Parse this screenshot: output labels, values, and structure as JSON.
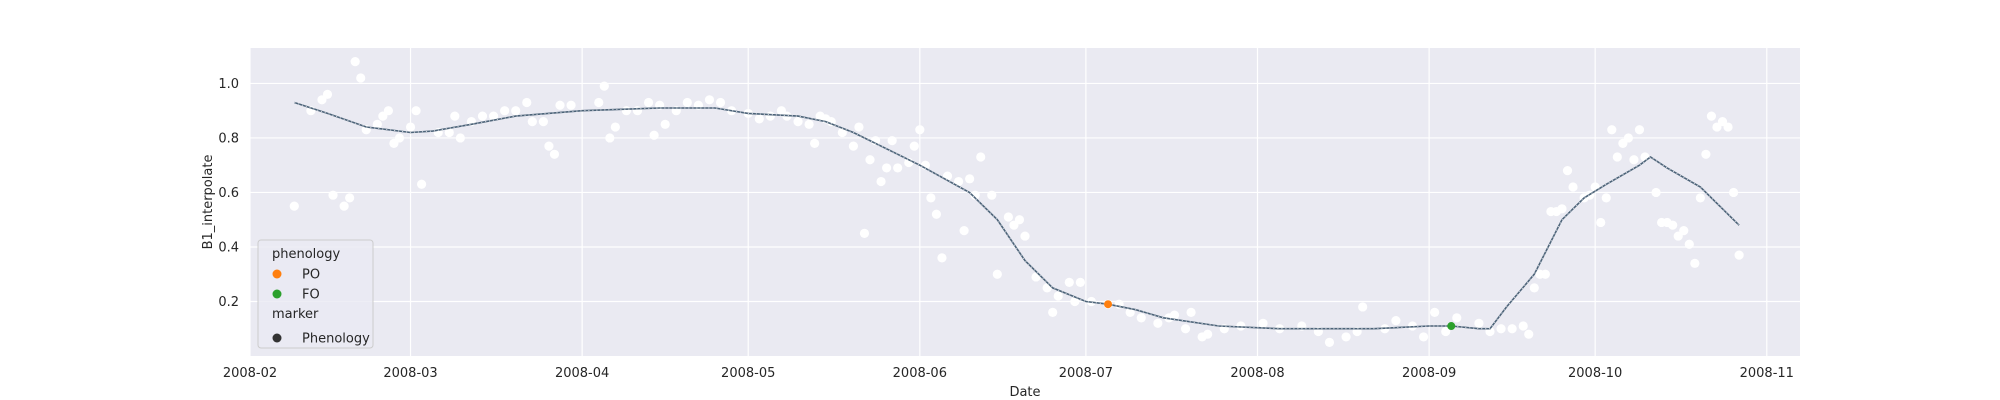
{
  "chart_data": {
    "type": "scatter",
    "xlabel": "Date",
    "ylabel": "B1_interpolate",
    "x_domain": [
      "2008-02-01",
      "2008-11-07"
    ],
    "ylim": [
      0.0,
      1.13
    ],
    "x_ticks": [
      "2008-02",
      "2008-03",
      "2008-04",
      "2008-05",
      "2008-06",
      "2008-07",
      "2008-08",
      "2008-09",
      "2008-10",
      "2008-11"
    ],
    "y_ticks": [
      0.2,
      0.4,
      0.6,
      0.8,
      1.0
    ],
    "y_tick_labels": [
      "0.2",
      "0.4",
      "0.6",
      "0.8",
      "1.0"
    ],
    "grid": true,
    "background": "#eaeaf2",
    "legend": {
      "placement": "lower-left",
      "phenology_title": "phenology",
      "marker_title": "marker",
      "entries": [
        {
          "label": "PO",
          "color": "#ff7f0e"
        },
        {
          "label": "FO",
          "color": "#2ca02c"
        }
      ],
      "marker_entry": {
        "label": "Phenology",
        "color": "#333333"
      }
    },
    "observations": {
      "color": "#ffffff",
      "points": [
        [
          "2008-02-09",
          0.55
        ],
        [
          "2008-02-12",
          0.9
        ],
        [
          "2008-02-14",
          0.94
        ],
        [
          "2008-02-15",
          0.96
        ],
        [
          "2008-02-16",
          0.59
        ],
        [
          "2008-02-18",
          0.55
        ],
        [
          "2008-02-19",
          0.58
        ],
        [
          "2008-02-20",
          1.08
        ],
        [
          "2008-02-21",
          1.02
        ],
        [
          "2008-02-22",
          0.83
        ],
        [
          "2008-02-24",
          0.85
        ],
        [
          "2008-02-25",
          0.88
        ],
        [
          "2008-02-26",
          0.9
        ],
        [
          "2008-02-27",
          0.78
        ],
        [
          "2008-02-28",
          0.8
        ],
        [
          "2008-03-01",
          0.84
        ],
        [
          "2008-03-02",
          0.9
        ],
        [
          "2008-03-03",
          0.63
        ],
        [
          "2008-03-06",
          0.82
        ],
        [
          "2008-03-08",
          0.82
        ],
        [
          "2008-03-09",
          0.88
        ],
        [
          "2008-03-10",
          0.8
        ],
        [
          "2008-03-12",
          0.86
        ],
        [
          "2008-03-14",
          0.88
        ],
        [
          "2008-03-16",
          0.88
        ],
        [
          "2008-03-18",
          0.9
        ],
        [
          "2008-03-20",
          0.9
        ],
        [
          "2008-03-22",
          0.93
        ],
        [
          "2008-03-23",
          0.86
        ],
        [
          "2008-03-25",
          0.86
        ],
        [
          "2008-03-26",
          0.77
        ],
        [
          "2008-03-27",
          0.74
        ],
        [
          "2008-03-28",
          0.92
        ],
        [
          "2008-03-30",
          0.92
        ],
        [
          "2008-04-04",
          0.93
        ],
        [
          "2008-04-05",
          0.99
        ],
        [
          "2008-04-06",
          0.8
        ],
        [
          "2008-04-07",
          0.84
        ],
        [
          "2008-04-09",
          0.9
        ],
        [
          "2008-04-11",
          0.9
        ],
        [
          "2008-04-13",
          0.93
        ],
        [
          "2008-04-14",
          0.81
        ],
        [
          "2008-04-15",
          0.92
        ],
        [
          "2008-04-16",
          0.85
        ],
        [
          "2008-04-18",
          0.9
        ],
        [
          "2008-04-20",
          0.93
        ],
        [
          "2008-04-22",
          0.92
        ],
        [
          "2008-04-24",
          0.94
        ],
        [
          "2008-04-26",
          0.93
        ],
        [
          "2008-04-28",
          0.9
        ],
        [
          "2008-05-01",
          0.89
        ],
        [
          "2008-05-03",
          0.87
        ],
        [
          "2008-05-05",
          0.88
        ],
        [
          "2008-05-07",
          0.9
        ],
        [
          "2008-05-08",
          0.88
        ],
        [
          "2008-05-10",
          0.86
        ],
        [
          "2008-05-12",
          0.85
        ],
        [
          "2008-05-13",
          0.78
        ],
        [
          "2008-05-14",
          0.88
        ],
        [
          "2008-05-15",
          0.87
        ],
        [
          "2008-05-16",
          0.86
        ],
        [
          "2008-05-18",
          0.82
        ],
        [
          "2008-05-20",
          0.77
        ],
        [
          "2008-05-21",
          0.84
        ],
        [
          "2008-05-22",
          0.45
        ],
        [
          "2008-05-23",
          0.72
        ],
        [
          "2008-05-24",
          0.79
        ],
        [
          "2008-05-25",
          0.64
        ],
        [
          "2008-05-26",
          0.69
        ],
        [
          "2008-05-27",
          0.79
        ],
        [
          "2008-05-28",
          0.69
        ],
        [
          "2008-05-30",
          0.71
        ],
        [
          "2008-05-31",
          0.77
        ],
        [
          "2008-06-01",
          0.83
        ],
        [
          "2008-06-02",
          0.7
        ],
        [
          "2008-06-03",
          0.58
        ],
        [
          "2008-06-04",
          0.52
        ],
        [
          "2008-06-05",
          0.36
        ],
        [
          "2008-06-06",
          0.66
        ],
        [
          "2008-06-08",
          0.64
        ],
        [
          "2008-06-09",
          0.46
        ],
        [
          "2008-06-10",
          0.65
        ],
        [
          "2008-06-11",
          0.59
        ],
        [
          "2008-06-12",
          0.73
        ],
        [
          "2008-06-14",
          0.59
        ],
        [
          "2008-06-15",
          0.3
        ],
        [
          "2008-06-17",
          0.51
        ],
        [
          "2008-06-18",
          0.48
        ],
        [
          "2008-06-19",
          0.5
        ],
        [
          "2008-06-20",
          0.44
        ],
        [
          "2008-06-22",
          0.29
        ],
        [
          "2008-06-24",
          0.25
        ],
        [
          "2008-06-25",
          0.16
        ],
        [
          "2008-06-26",
          0.22
        ],
        [
          "2008-06-28",
          0.27
        ],
        [
          "2008-06-29",
          0.2
        ],
        [
          "2008-06-30",
          0.27
        ],
        [
          "2008-07-02",
          0.2
        ],
        [
          "2008-07-05",
          0.19
        ],
        [
          "2008-07-07",
          0.19
        ],
        [
          "2008-07-09",
          0.16
        ],
        [
          "2008-07-11",
          0.14
        ],
        [
          "2008-07-14",
          0.12
        ],
        [
          "2008-07-16",
          0.14
        ],
        [
          "2008-07-17",
          0.15
        ],
        [
          "2008-07-19",
          0.1
        ],
        [
          "2008-07-20",
          0.16
        ],
        [
          "2008-07-22",
          0.07
        ],
        [
          "2008-07-23",
          0.08
        ],
        [
          "2008-07-26",
          0.1
        ],
        [
          "2008-07-29",
          0.11
        ],
        [
          "2008-08-02",
          0.12
        ],
        [
          "2008-08-05",
          0.1
        ],
        [
          "2008-08-09",
          0.11
        ],
        [
          "2008-08-12",
          0.09
        ],
        [
          "2008-08-14",
          0.05
        ],
        [
          "2008-08-17",
          0.07
        ],
        [
          "2008-08-19",
          0.09
        ],
        [
          "2008-08-20",
          0.18
        ],
        [
          "2008-08-24",
          0.1
        ],
        [
          "2008-08-26",
          0.13
        ],
        [
          "2008-08-29",
          0.11
        ],
        [
          "2008-08-31",
          0.07
        ],
        [
          "2008-09-02",
          0.16
        ],
        [
          "2008-09-04",
          0.09
        ],
        [
          "2008-09-06",
          0.14
        ],
        [
          "2008-09-10",
          0.12
        ],
        [
          "2008-09-12",
          0.09
        ],
        [
          "2008-09-14",
          0.1
        ],
        [
          "2008-09-16",
          0.1
        ],
        [
          "2008-09-18",
          0.11
        ],
        [
          "2008-09-19",
          0.08
        ],
        [
          "2008-09-20",
          0.25
        ],
        [
          "2008-09-21",
          0.3
        ],
        [
          "2008-09-22",
          0.3
        ],
        [
          "2008-09-23",
          0.53
        ],
        [
          "2008-09-24",
          0.53
        ],
        [
          "2008-09-25",
          0.54
        ],
        [
          "2008-09-26",
          0.68
        ],
        [
          "2008-09-27",
          0.62
        ],
        [
          "2008-09-29",
          0.58
        ],
        [
          "2008-09-30",
          0.59
        ],
        [
          "2008-10-01",
          0.62
        ],
        [
          "2008-10-02",
          0.49
        ],
        [
          "2008-10-03",
          0.58
        ],
        [
          "2008-10-04",
          0.83
        ],
        [
          "2008-10-05",
          0.73
        ],
        [
          "2008-10-06",
          0.78
        ],
        [
          "2008-10-07",
          0.8
        ],
        [
          "2008-10-08",
          0.72
        ],
        [
          "2008-10-09",
          0.83
        ],
        [
          "2008-10-10",
          0.73
        ],
        [
          "2008-10-12",
          0.6
        ],
        [
          "2008-10-13",
          0.49
        ],
        [
          "2008-10-14",
          0.49
        ],
        [
          "2008-10-15",
          0.48
        ],
        [
          "2008-10-16",
          0.44
        ],
        [
          "2008-10-17",
          0.46
        ],
        [
          "2008-10-18",
          0.41
        ],
        [
          "2008-10-19",
          0.34
        ],
        [
          "2008-10-20",
          0.58
        ],
        [
          "2008-10-21",
          0.74
        ],
        [
          "2008-10-22",
          0.88
        ],
        [
          "2008-10-23",
          0.84
        ],
        [
          "2008-10-24",
          0.86
        ],
        [
          "2008-10-25",
          0.84
        ],
        [
          "2008-10-26",
          0.6
        ],
        [
          "2008-10-27",
          0.37
        ]
      ]
    },
    "interpolated_line": {
      "color": "#4c6378",
      "points": [
        [
          "2008-02-09",
          0.93
        ],
        [
          "2008-02-15",
          0.89
        ],
        [
          "2008-02-22",
          0.84
        ],
        [
          "2008-03-01",
          0.82
        ],
        [
          "2008-03-05",
          0.825
        ],
        [
          "2008-03-12",
          0.85
        ],
        [
          "2008-03-20",
          0.88
        ],
        [
          "2008-04-01",
          0.9
        ],
        [
          "2008-04-15",
          0.91
        ],
        [
          "2008-04-25",
          0.91
        ],
        [
          "2008-05-01",
          0.89
        ],
        [
          "2008-05-10",
          0.88
        ],
        [
          "2008-05-15",
          0.86
        ],
        [
          "2008-05-20",
          0.82
        ],
        [
          "2008-06-01",
          0.7
        ],
        [
          "2008-06-10",
          0.6
        ],
        [
          "2008-06-15",
          0.5
        ],
        [
          "2008-06-20",
          0.35
        ],
        [
          "2008-06-25",
          0.25
        ],
        [
          "2008-07-01",
          0.2
        ],
        [
          "2008-07-05",
          0.19
        ],
        [
          "2008-07-10",
          0.17
        ],
        [
          "2008-07-15",
          0.14
        ],
        [
          "2008-07-25",
          0.11
        ],
        [
          "2008-08-05",
          0.1
        ],
        [
          "2008-08-15",
          0.1
        ],
        [
          "2008-08-22",
          0.1
        ],
        [
          "2008-09-01",
          0.11
        ],
        [
          "2008-09-05",
          0.11
        ],
        [
          "2008-09-10",
          0.1
        ],
        [
          "2008-09-12",
          0.1
        ],
        [
          "2008-09-15",
          0.18
        ],
        [
          "2008-09-20",
          0.3
        ],
        [
          "2008-09-25",
          0.5
        ],
        [
          "2008-09-29",
          0.58
        ],
        [
          "2008-10-03",
          0.63
        ],
        [
          "2008-10-09",
          0.7
        ],
        [
          "2008-10-11",
          0.73
        ],
        [
          "2008-10-14",
          0.69
        ],
        [
          "2008-10-20",
          0.62
        ],
        [
          "2008-10-27",
          0.48
        ]
      ]
    },
    "phenology_points": [
      {
        "label": "PO",
        "date": "2008-07-05",
        "value": 0.19,
        "color": "#ff7f0e"
      },
      {
        "label": "FO",
        "date": "2008-09-05",
        "value": 0.11,
        "color": "#2ca02c"
      }
    ]
  }
}
